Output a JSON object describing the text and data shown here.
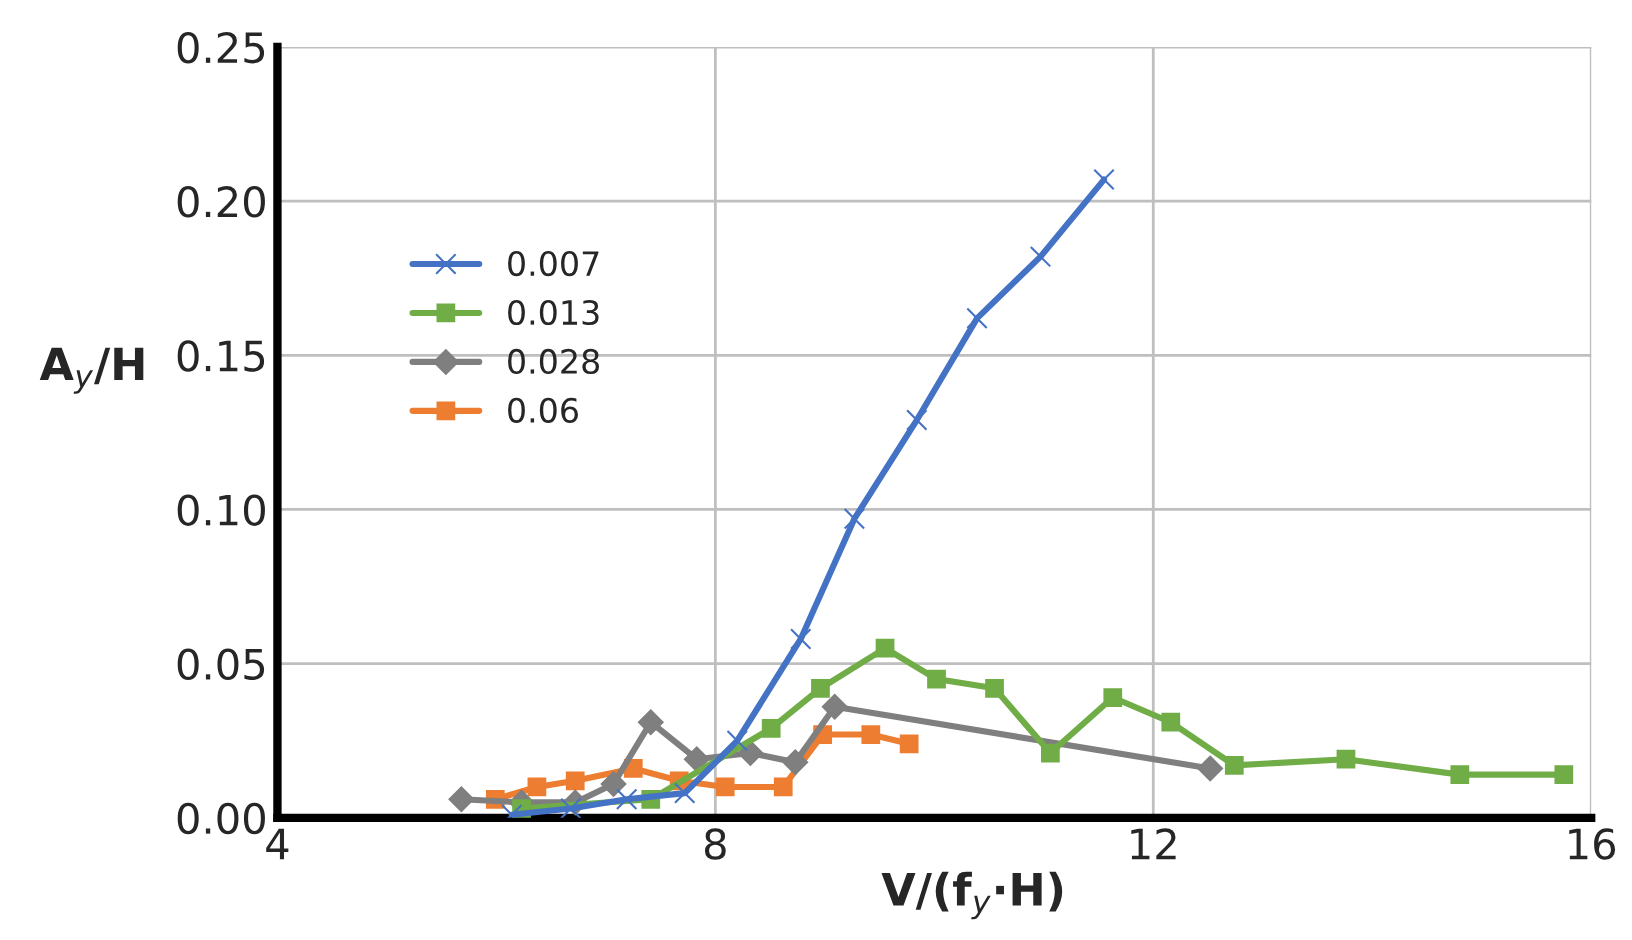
{
  "chart_data": {
    "type": "line",
    "xlabel": "V/(f$_{y}$·H)",
    "ylabel": "A$_{y}$/H",
    "xlim": [
      4,
      16
    ],
    "xticks": [
      4,
      8,
      12,
      16
    ],
    "ylim": [
      0,
      0.25
    ],
    "yticks": [
      {
        "value": 0,
        "label": "0.00"
      },
      {
        "value": 0.05,
        "label": "0.05"
      },
      {
        "value": 0.1,
        "label": "0.10"
      },
      {
        "value": 0.15,
        "label": "0.15"
      },
      {
        "value": 0.2,
        "label": "0.20"
      },
      {
        "value": 0.25,
        "label": "0.25"
      }
    ],
    "grid": true,
    "legend": "left",
    "series": [
      {
        "name": "0.007",
        "color": "#4472c4",
        "marker": "cross",
        "x": [
          6.14,
          6.68,
          7.19,
          7.72,
          8.2,
          8.78,
          9.27,
          9.84,
          10.39,
          10.97,
          11.55
        ],
        "values": [
          0.001,
          0.003,
          0.006,
          0.008,
          0.025,
          0.058,
          0.097,
          0.129,
          0.162,
          0.182,
          0.207
        ]
      },
      {
        "name": "0.013",
        "color": "#70ad47",
        "marker": "square",
        "x": [
          6.23,
          7.41,
          8.51,
          8.96,
          9.55,
          10.02,
          10.55,
          11.06,
          11.63,
          12.16,
          12.74,
          13.76,
          14.8,
          15.75
        ],
        "values": [
          0.003,
          0.006,
          0.029,
          0.042,
          0.055,
          0.045,
          0.042,
          0.021,
          0.039,
          0.031,
          0.017,
          0.019,
          0.014,
          0.014
        ]
      },
      {
        "name": "0.028",
        "color": "#7f7f7f",
        "marker": "diamond",
        "x": [
          5.68,
          6.23,
          6.72,
          7.07,
          7.41,
          7.83,
          8.32,
          8.73,
          9.09,
          12.52
        ],
        "values": [
          0.006,
          0.005,
          0.005,
          0.011,
          0.031,
          0.019,
          0.021,
          0.018,
          0.036,
          0.016
        ]
      },
      {
        "name": "0.06",
        "color": "#ed7d31",
        "marker": "square",
        "x": [
          5.99,
          6.37,
          6.72,
          7.25,
          7.67,
          8.09,
          8.62,
          8.98,
          9.42,
          9.77
        ],
        "values": [
          0.006,
          0.01,
          0.012,
          0.016,
          0.012,
          0.01,
          0.01,
          0.027,
          0.027,
          0.024
        ]
      }
    ]
  }
}
